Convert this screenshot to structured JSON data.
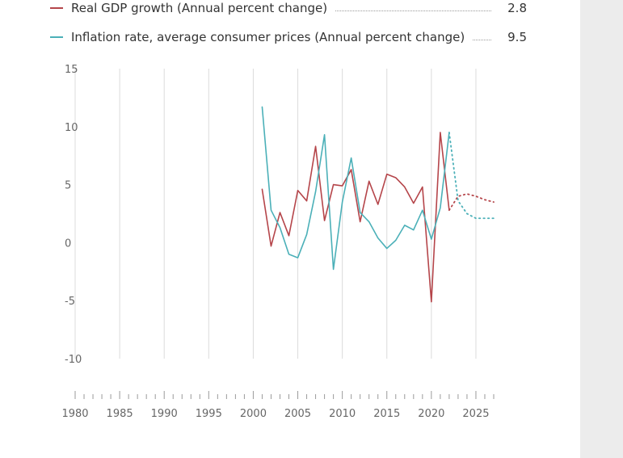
{
  "colors": {
    "gdp": "#b5454a",
    "inflation": "#4bb0b8",
    "grid": "#dcdcdc",
    "panel": "#ececec"
  },
  "legend": [
    {
      "key": "gdp",
      "label": "Real GDP growth (Annual percent change)",
      "value": "2.8"
    },
    {
      "key": "inflation",
      "label": "Inflation rate, average consumer prices (Annual percent change)",
      "value": "9.5"
    }
  ],
  "chart_data": {
    "type": "line",
    "title": "",
    "xlabel": "",
    "ylabel": "",
    "xlim": [
      1980,
      2027
    ],
    "ylim": [
      -10,
      15
    ],
    "yticks": [
      15,
      10,
      5,
      0,
      -5,
      -10
    ],
    "ytick_labels": [
      "15",
      "10",
      "5",
      "0",
      "-5",
      "-10"
    ],
    "xticks": [
      1980,
      1985,
      1990,
      1995,
      2000,
      2005,
      2010,
      2015,
      2020,
      2025
    ],
    "xtick_labels": [
      "1980",
      "1985",
      "1990",
      "1995",
      "2000",
      "2005",
      "2010",
      "2015",
      "2020",
      "2025"
    ],
    "grid": "vertical",
    "legend_position": "top-left",
    "series": [
      {
        "key": "gdp",
        "name": "Real GDP growth (Annual percent change)",
        "x": [
          2001,
          2002,
          2003,
          2004,
          2005,
          2006,
          2007,
          2008,
          2009,
          2010,
          2011,
          2012,
          2013,
          2014,
          2015,
          2016,
          2017,
          2018,
          2019,
          2020,
          2021,
          2022
        ],
        "y": [
          4.6,
          -0.3,
          2.6,
          0.6,
          4.5,
          3.6,
          8.3,
          1.9,
          5.0,
          4.9,
          6.3,
          1.8,
          5.3,
          3.3,
          5.9,
          5.6,
          4.8,
          3.4,
          4.8,
          -5.1,
          9.5,
          2.8
        ],
        "projection_x": [
          2022,
          2023,
          2024,
          2025,
          2026,
          2027
        ],
        "projection_y": [
          2.8,
          4.0,
          4.2,
          4.0,
          3.7,
          3.5
        ]
      },
      {
        "key": "inflation",
        "name": "Inflation rate, average consumer prices (Annual percent change)",
        "x": [
          2001,
          2002,
          2003,
          2004,
          2005,
          2006,
          2007,
          2008,
          2009,
          2010,
          2011,
          2012,
          2013,
          2014,
          2015,
          2016,
          2017,
          2018,
          2019,
          2020,
          2021,
          2022
        ],
        "y": [
          11.7,
          2.8,
          1.3,
          -1.0,
          -1.3,
          0.7,
          4.4,
          9.3,
          -2.3,
          3.5,
          7.3,
          2.6,
          1.8,
          0.4,
          -0.5,
          0.2,
          1.5,
          1.1,
          2.8,
          0.3,
          3.0,
          9.5
        ],
        "projection_x": [
          2022,
          2023,
          2024,
          2025,
          2026,
          2027
        ],
        "projection_y": [
          9.5,
          3.6,
          2.5,
          2.1,
          2.1,
          2.1
        ]
      }
    ]
  }
}
